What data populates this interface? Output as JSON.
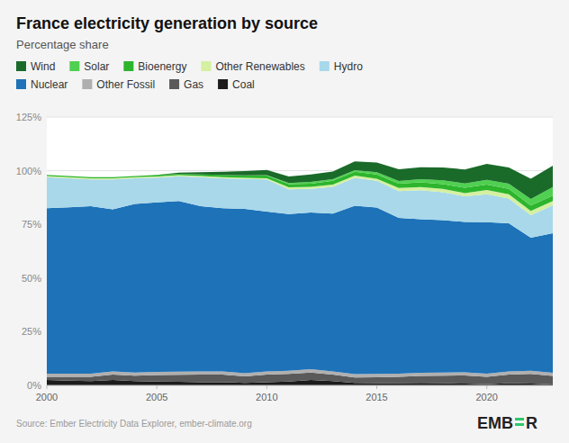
{
  "chart_data": {
    "type": "area",
    "stacked": true,
    "title": "France electricity generation by source",
    "subtitle": "Percentage share",
    "source": "Source: Ember Electricity Data Explorer, ember-climate.org",
    "annotations": [
      "EMB",
      "R"
    ],
    "x": [
      2000,
      2001,
      2002,
      2003,
      2004,
      2005,
      2006,
      2007,
      2008,
      2009,
      2010,
      2011,
      2012,
      2013,
      2014,
      2015,
      2016,
      2017,
      2018,
      2019,
      2020,
      2021,
      2022,
      2023
    ],
    "series": [
      {
        "name": "Coal",
        "color": "#1c1c1c",
        "values": [
          2.5,
          2.2,
          2.0,
          2.5,
          2.0,
          1.8,
          1.7,
          1.5,
          1.5,
          1.2,
          1.5,
          1.8,
          2.5,
          2.0,
          1.2,
          1.0,
          1.0,
          1.2,
          1.0,
          0.8,
          0.5,
          1.0,
          0.8,
          0.4
        ]
      },
      {
        "name": "Gas",
        "color": "#5a5a5a",
        "values": [
          1.5,
          1.8,
          2.0,
          2.5,
          2.5,
          3.0,
          3.2,
          3.5,
          3.5,
          3.0,
          3.5,
          3.5,
          3.5,
          3.0,
          2.5,
          2.8,
          3.0,
          3.2,
          3.5,
          3.8,
          3.5,
          4.0,
          4.5,
          4.0
        ]
      },
      {
        "name": "Other Fossil",
        "color": "#b0afaf",
        "values": [
          1.5,
          1.5,
          1.5,
          1.5,
          1.5,
          1.5,
          1.5,
          1.5,
          1.5,
          1.5,
          1.5,
          1.5,
          1.5,
          1.5,
          1.5,
          1.5,
          1.5,
          1.5,
          1.5,
          1.5,
          1.5,
          1.5,
          1.5,
          1.5
        ]
      },
      {
        "name": "Nuclear",
        "color": "#1d72b8",
        "values": [
          77.0,
          77.5,
          78.0,
          75.5,
          78.5,
          79.0,
          79.5,
          77.0,
          76.0,
          76.5,
          74.5,
          73.0,
          73.0,
          73.5,
          78.5,
          77.5,
          72.5,
          71.5,
          71.0,
          70.0,
          70.5,
          69.0,
          62.0,
          65.0
        ]
      },
      {
        "name": "Hydro",
        "color": "#a8d8ea",
        "values": [
          14.5,
          13.5,
          12.5,
          14.0,
          12.0,
          11.5,
          11.5,
          13.5,
          14.0,
          14.0,
          15.0,
          11.5,
          11.0,
          12.5,
          13.0,
          12.5,
          12.5,
          13.5,
          13.0,
          12.0,
          13.0,
          11.5,
          10.5,
          13.0
        ]
      },
      {
        "name": "Other Renewables",
        "color": "#d4f0a0",
        "values": [
          0.5,
          0.5,
          0.5,
          0.5,
          0.5,
          0.5,
          0.5,
          0.5,
          0.5,
          0.5,
          0.5,
          1.0,
          1.0,
          1.0,
          1.0,
          1.0,
          1.5,
          1.5,
          1.5,
          1.5,
          2.0,
          2.0,
          2.0,
          2.0
        ]
      },
      {
        "name": "Bioenergy",
        "color": "#2db52d",
        "values": [
          0.5,
          0.5,
          0.5,
          0.5,
          0.5,
          0.7,
          0.7,
          0.8,
          1.0,
          1.0,
          1.2,
          1.5,
          1.5,
          1.8,
          1.8,
          2.0,
          2.0,
          2.2,
          2.2,
          2.5,
          2.5,
          2.5,
          2.5,
          2.5
        ]
      },
      {
        "name": "Solar",
        "color": "#50d050",
        "values": [
          0.0,
          0.0,
          0.0,
          0.0,
          0.0,
          0.0,
          0.0,
          0.0,
          0.0,
          0.1,
          0.2,
          0.5,
          0.8,
          0.8,
          0.8,
          1.0,
          1.2,
          1.5,
          1.8,
          2.0,
          2.2,
          2.5,
          3.0,
          4.0
        ]
      },
      {
        "name": "Wind",
        "color": "#1a6b2a",
        "values": [
          0.0,
          0.0,
          0.0,
          0.0,
          0.0,
          0.0,
          0.5,
          1.0,
          1.5,
          2.0,
          2.5,
          3.0,
          3.5,
          3.5,
          4.0,
          4.5,
          5.5,
          5.5,
          6.0,
          6.5,
          7.5,
          7.5,
          9.5,
          10.0
        ]
      }
    ],
    "xlim": [
      2000,
      2023
    ],
    "xticks": [
      2000,
      2005,
      2010,
      2015,
      2020
    ],
    "ylim": [
      0,
      125
    ],
    "yticks": [
      {
        "value": 0,
        "label": "0%"
      },
      {
        "value": 25,
        "label": "25%"
      },
      {
        "value": 50,
        "label": "50%"
      },
      {
        "value": 75,
        "label": "75%"
      },
      {
        "value": 100,
        "label": "100%"
      },
      {
        "value": 125,
        "label": "125%"
      }
    ],
    "grid": true
  }
}
